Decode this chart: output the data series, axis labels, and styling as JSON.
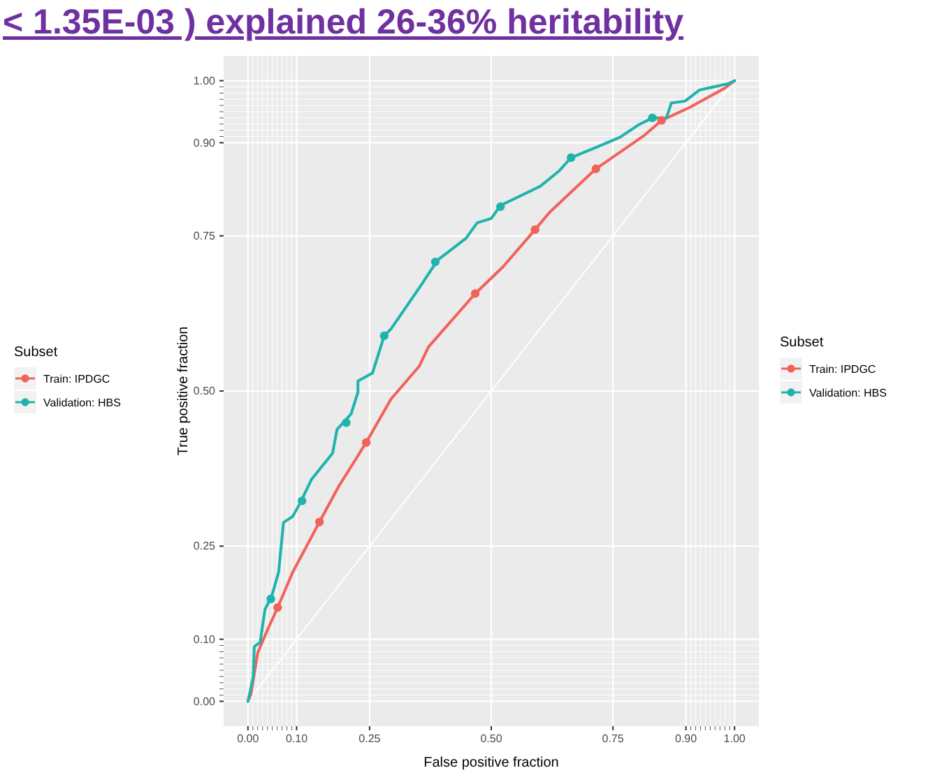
{
  "chart_data": {
    "type": "line",
    "title": "< 1.35E-03 ) explained 26-36% heritability",
    "xlabel": "False positive fraction",
    "ylabel": "True positive fraction",
    "legend_title": "Subset",
    "xlim": [
      -0.05,
      1.05
    ],
    "ylim": [
      -0.04,
      1.04
    ],
    "xticks": [
      {
        "value": 0,
        "label": "0.00"
      },
      {
        "value": 0.01,
        "label": null
      },
      {
        "value": 0.02,
        "label": null
      },
      {
        "value": 0.03,
        "label": null
      },
      {
        "value": 0.04,
        "label": null
      },
      {
        "value": 0.05,
        "label": null
      },
      {
        "value": 0.06,
        "label": null
      },
      {
        "value": 0.07,
        "label": null
      },
      {
        "value": 0.08,
        "label": null
      },
      {
        "value": 0.09,
        "label": null
      },
      {
        "value": 0.1,
        "label": "0.10"
      },
      {
        "value": 0.25,
        "label": "0.25"
      },
      {
        "value": 0.5,
        "label": "0.50"
      },
      {
        "value": 0.75,
        "label": "0.75"
      },
      {
        "value": 0.9,
        "label": "0.90"
      },
      {
        "value": 0.91,
        "label": null
      },
      {
        "value": 0.92,
        "label": null
      },
      {
        "value": 0.93,
        "label": null
      },
      {
        "value": 0.94,
        "label": null
      },
      {
        "value": 0.95,
        "label": null
      },
      {
        "value": 0.96,
        "label": null
      },
      {
        "value": 0.97,
        "label": null
      },
      {
        "value": 0.98,
        "label": null
      },
      {
        "value": 0.99,
        "label": null
      },
      {
        "value": 1,
        "label": "1.00"
      }
    ],
    "yticks": [
      {
        "value": 0,
        "label": "0.00"
      },
      {
        "value": 0.01,
        "label": null
      },
      {
        "value": 0.02,
        "label": null
      },
      {
        "value": 0.03,
        "label": null
      },
      {
        "value": 0.04,
        "label": null
      },
      {
        "value": 0.05,
        "label": null
      },
      {
        "value": 0.06,
        "label": null
      },
      {
        "value": 0.07,
        "label": null
      },
      {
        "value": 0.08,
        "label": null
      },
      {
        "value": 0.09,
        "label": null
      },
      {
        "value": 0.1,
        "label": "0.10"
      },
      {
        "value": 0.25,
        "label": "0.25"
      },
      {
        "value": 0.5,
        "label": "0.50"
      },
      {
        "value": 0.75,
        "label": "0.75"
      },
      {
        "value": 0.9,
        "label": "0.90"
      },
      {
        "value": 0.91,
        "label": null
      },
      {
        "value": 0.92,
        "label": null
      },
      {
        "value": 0.93,
        "label": null
      },
      {
        "value": 0.94,
        "label": null
      },
      {
        "value": 0.95,
        "label": null
      },
      {
        "value": 0.96,
        "label": null
      },
      {
        "value": 0.97,
        "label": null
      },
      {
        "value": 0.98,
        "label": null
      },
      {
        "value": 0.99,
        "label": null
      },
      {
        "value": 1,
        "label": "1.00"
      }
    ],
    "grid": true,
    "legend": "right",
    "series": [
      {
        "color": "#ffffff",
        "x": [
          0,
          1
        ],
        "values": [
          0,
          1
        ]
      },
      {
        "name": "Train: IPDGC",
        "color": "#f0625a",
        "x": [
          0,
          0.006,
          0.02,
          0.039,
          0.061,
          0.092,
          0.147,
          0.187,
          0.243,
          0.294,
          0.352,
          0.371,
          0.467,
          0.524,
          0.59,
          0.62,
          0.715,
          0.813,
          0.85,
          0.908,
          0.98,
          1
        ],
        "values": [
          0,
          0.011,
          0.078,
          0.113,
          0.151,
          0.208,
          0.289,
          0.347,
          0.417,
          0.487,
          0.54,
          0.571,
          0.657,
          0.7,
          0.76,
          0.788,
          0.858,
          0.911,
          0.936,
          0.957,
          0.988,
          1
        ]
      },
      {
        "name": "Validation: HBS",
        "color": "#1fb3ad",
        "x": [
          0,
          0.011,
          0.013,
          0.025,
          0.035,
          0.049,
          0.063,
          0.073,
          0.092,
          0.107,
          0.131,
          0.174,
          0.183,
          0.212,
          0.226,
          0.226,
          0.256,
          0.28,
          0.294,
          0.352,
          0.39,
          0.448,
          0.471,
          0.5,
          0.519,
          0.601,
          0.64,
          0.664,
          0.717,
          0.765,
          0.803,
          0.831,
          0.86,
          0.87,
          0.898,
          0.928,
          0.986,
          1
        ],
        "values": [
          0,
          0.04,
          0.088,
          0.095,
          0.148,
          0.17,
          0.208,
          0.288,
          0.298,
          0.319,
          0.358,
          0.4,
          0.438,
          0.463,
          0.498,
          0.516,
          0.529,
          0.589,
          0.6,
          0.666,
          0.711,
          0.746,
          0.771,
          0.778,
          0.799,
          0.83,
          0.855,
          0.876,
          0.893,
          0.909,
          0.929,
          0.94,
          0.94,
          0.964,
          0.967,
          0.985,
          0.995,
          1
        ]
      },
      {
        "type": "scatter",
        "marker": "circle",
        "color": "#f0625a",
        "x": [
          0.061,
          0.147,
          0.243,
          0.467,
          0.59,
          0.715,
          0.85
        ],
        "values": [
          0.151,
          0.289,
          0.417,
          0.657,
          0.76,
          0.858,
          0.936
        ]
      },
      {
        "type": "scatter",
        "marker": "circle",
        "color": "#1fb3ad",
        "x": [
          0.047,
          0.111,
          0.202,
          0.28,
          0.385,
          0.519,
          0.664,
          0.831
        ],
        "values": [
          0.165,
          0.323,
          0.449,
          0.589,
          0.708,
          0.797,
          0.876,
          0.94
        ]
      }
    ]
  }
}
